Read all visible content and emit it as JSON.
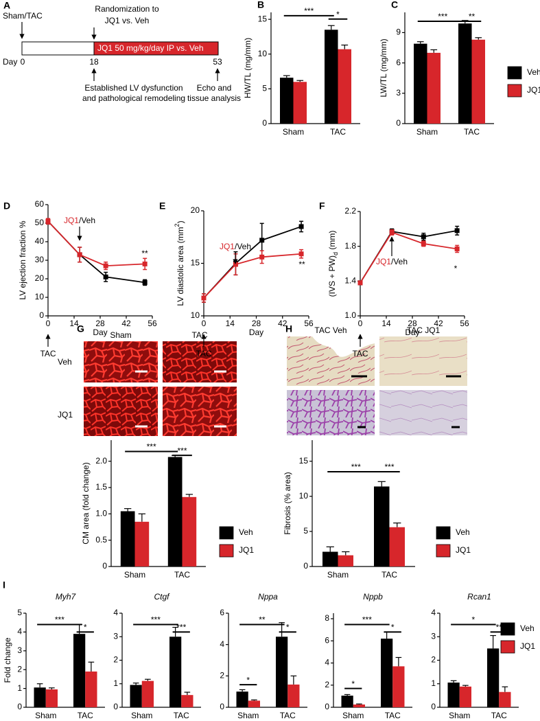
{
  "panel_a": {
    "label": "A",
    "start": "Sham/TAC",
    "randomization": [
      "Randomization to",
      "JQ1 vs. Veh"
    ],
    "day": "Day",
    "days": [
      "0",
      "18",
      "53"
    ],
    "treatment": "JQ1 50 mg/kg/day IP vs. Veh",
    "established": [
      "Established LV dysfunction",
      "and pathological remodeling"
    ],
    "endpoint": [
      "Echo and",
      "tissue analysis"
    ]
  },
  "panel_g": {
    "label": "G",
    "columns": [
      "Sham",
      "TAC"
    ],
    "rows": [
      "Veh",
      "JQ1"
    ]
  },
  "panel_h": {
    "label": "H",
    "columns": [
      "TAC Veh",
      "TAC JQ1"
    ]
  },
  "chart_data": [
    {
      "type": "bar",
      "panel": "B",
      "ylabel": "HW/TL (mg/mm)",
      "categories": [
        "Sham",
        "TAC"
      ],
      "series": [
        {
          "name": "Veh",
          "color": "#000000",
          "values": [
            6.6,
            13.5
          ],
          "errors": [
            0.3,
            0.6
          ]
        },
        {
          "name": "JQ1",
          "color": "#d7262b",
          "values": [
            6.0,
            10.7
          ],
          "errors": [
            0.2,
            0.6
          ]
        }
      ],
      "ylim": [
        0,
        16
      ],
      "yticks": [
        0,
        5,
        10,
        15
      ],
      "annotations": [
        "***",
        "*"
      ],
      "legend": false
    },
    {
      "type": "bar",
      "panel": "C",
      "ylabel": "LW/TL (mg/mm)",
      "categories": [
        "Sham",
        "TAC"
      ],
      "series": [
        {
          "name": "Veh",
          "color": "#000000",
          "values": [
            7.9,
            9.9
          ],
          "errors": [
            0.2,
            0.3
          ]
        },
        {
          "name": "JQ1",
          "color": "#d7262b",
          "values": [
            7.0,
            8.3
          ],
          "errors": [
            0.3,
            0.2
          ]
        }
      ],
      "ylim": [
        0,
        11
      ],
      "yticks": [
        0,
        3,
        6,
        9
      ],
      "annotations": [
        "***",
        "**"
      ],
      "legend": "right"
    },
    {
      "type": "line",
      "panel": "D",
      "ylabel": "LV ejection fraction %",
      "xlabel": "Day",
      "x": [
        0,
        17,
        31,
        52
      ],
      "series": [
        {
          "name": "Veh",
          "color": "#000000",
          "values": [
            51,
            33,
            21,
            18
          ],
          "errors": [
            1.5,
            4,
            2.5,
            1.5
          ]
        },
        {
          "name": "JQ1",
          "color": "#d7262b",
          "values": [
            51,
            33,
            27,
            28
          ],
          "errors": [
            1.5,
            4,
            2,
            3
          ]
        }
      ],
      "xlim": [
        0,
        56
      ],
      "xticks": [
        0,
        14,
        28,
        42,
        56
      ],
      "ylim": [
        0,
        60
      ],
      "yticks": [
        0,
        10,
        20,
        30,
        40,
        50,
        60
      ],
      "drug_label": [
        "JQ1",
        "/Veh"
      ],
      "start_label": "TAC",
      "annotations": [
        "**"
      ],
      "legend": false
    },
    {
      "type": "line",
      "panel": "E",
      "ylabel": [
        "LV diastolic area (mm",
        "2",
        ")"
      ],
      "ylabel_shift": "super",
      "xlabel": "Day",
      "x": [
        0,
        17,
        31,
        52
      ],
      "series": [
        {
          "name": "Veh",
          "color": "#000000",
          "values": [
            11.7,
            15.0,
            17.2,
            18.5
          ],
          "errors": [
            0.4,
            1.1,
            1.6,
            0.5
          ]
        },
        {
          "name": "JQ1",
          "color": "#d7262b",
          "values": [
            11.7,
            14.9,
            15.6,
            15.9
          ],
          "errors": [
            0.4,
            1.0,
            0.6,
            0.4
          ]
        }
      ],
      "xlim": [
        0,
        56
      ],
      "xticks": [
        0,
        14,
        28,
        42,
        56
      ],
      "ylim": [
        10,
        20
      ],
      "yticks": [
        10,
        15,
        20
      ],
      "drug_label": [
        "JQ1",
        "/Veh"
      ],
      "start_label": "TAC",
      "annotations": [
        "**"
      ],
      "legend": false
    },
    {
      "type": "line",
      "panel": "F",
      "ylabel": [
        "(IVS + PW)",
        "d",
        "   (mm)"
      ],
      "ylabel_shift": "sub",
      "xlabel": "Day",
      "x": [
        0,
        17,
        34,
        52
      ],
      "series": [
        {
          "name": "Veh",
          "color": "#000000",
          "values": [
            1.38,
            1.97,
            1.91,
            1.98
          ],
          "errors": [
            0.02,
            0.03,
            0.04,
            0.05
          ]
        },
        {
          "name": "JQ1",
          "color": "#d7262b",
          "values": [
            1.38,
            1.96,
            1.83,
            1.77
          ],
          "errors": [
            0.02,
            0.03,
            0.03,
            0.04
          ]
        }
      ],
      "xlim": [
        0,
        56
      ],
      "xticks": [
        0,
        14,
        28,
        42,
        56
      ],
      "ylim": [
        1,
        2.2
      ],
      "yticks": [
        {
          "value": 1,
          "label": "1.0"
        },
        1.4,
        1.8,
        2.2
      ],
      "drug_label": [
        "JQ1",
        "/Veh"
      ],
      "start_label": "TAC",
      "annotations": [
        "*"
      ],
      "legend": "right"
    },
    {
      "type": "bar",
      "ylabel": "CM area (fold change)",
      "categories": [
        "Sham",
        "TAC"
      ],
      "series": [
        {
          "name": "Veh",
          "color": "#000000",
          "values": [
            1.05,
            2.08
          ],
          "errors": [
            0.05,
            0.03
          ]
        },
        {
          "name": "JQ1",
          "color": "#d7262b",
          "values": [
            0.85,
            1.32
          ],
          "errors": [
            0.15,
            0.05
          ]
        }
      ],
      "ylim": [
        0,
        2.4
      ],
      "yticks": [
        0,
        0.5,
        {
          "value": 1,
          "label": "1.0"
        },
        1.5,
        {
          "value": 2,
          "label": "2.0"
        }
      ],
      "annotations": [
        "***",
        "***"
      ],
      "legend": "right"
    },
    {
      "type": "bar",
      "ylabel": "Fibrosis (% area)",
      "categories": [
        "Sham",
        "TAC"
      ],
      "series": [
        {
          "name": "Veh",
          "color": "#000000",
          "values": [
            2.1,
            11.4
          ],
          "errors": [
            0.7,
            0.7
          ]
        },
        {
          "name": "JQ1",
          "color": "#d7262b",
          "values": [
            1.6,
            5.6
          ],
          "errors": [
            0.5,
            0.6
          ]
        }
      ],
      "ylim": [
        0,
        18
      ],
      "yticks": [
        0,
        5,
        10,
        15
      ],
      "annotations": [
        "***",
        "***"
      ],
      "legend": "right"
    },
    {
      "type": "bar",
      "panel": "I",
      "title": "Myh7",
      "ylabel": "Fold change",
      "categories": [
        "Sham",
        "TAC"
      ],
      "series": [
        {
          "name": "Veh",
          "color": "#000000",
          "values": [
            1.05,
            3.9
          ],
          "errors": [
            0.2,
            0.5
          ]
        },
        {
          "name": "JQ1",
          "color": "#d7262b",
          "values": [
            0.95,
            1.9
          ],
          "errors": [
            0.08,
            0.5
          ]
        }
      ],
      "ylim": [
        0,
        5
      ],
      "yticks": [
        0,
        1,
        2,
        3,
        4,
        5
      ],
      "annotations": [
        "***",
        "*"
      ],
      "legend": false
    },
    {
      "type": "bar",
      "title": "Ctgf",
      "categories": [
        "Sham",
        "TAC"
      ],
      "series": [
        {
          "name": "Veh",
          "color": "#000000",
          "values": [
            0.95,
            3.0
          ],
          "errors": [
            0.08,
            0.4
          ]
        },
        {
          "name": "JQ1",
          "color": "#d7262b",
          "values": [
            1.12,
            0.52
          ],
          "errors": [
            0.07,
            0.12
          ]
        }
      ],
      "ylim": [
        0,
        4
      ],
      "yticks": [
        0,
        1,
        2,
        3,
        4
      ],
      "annotations": [
        "***",
        "***"
      ],
      "legend": false
    },
    {
      "type": "bar",
      "title": "Nppa",
      "categories": [
        "Sham",
        "TAC"
      ],
      "series": [
        {
          "name": "Veh",
          "color": "#000000",
          "values": [
            1.0,
            4.5
          ],
          "errors": [
            0.12,
            0.9
          ]
        },
        {
          "name": "JQ1",
          "color": "#d7262b",
          "values": [
            0.42,
            1.45
          ],
          "errors": [
            0.05,
            0.55
          ]
        }
      ],
      "ylim": [
        0,
        6
      ],
      "yticks": [
        0,
        2,
        4,
        6
      ],
      "annotations": [
        "*",
        "**",
        "*"
      ],
      "legend": false
    },
    {
      "type": "bar",
      "title": "Nppb",
      "categories": [
        "Sham",
        "TAC"
      ],
      "series": [
        {
          "name": "Veh",
          "color": "#000000",
          "values": [
            1.05,
            6.2
          ],
          "errors": [
            0.1,
            0.6
          ]
        },
        {
          "name": "JQ1",
          "color": "#d7262b",
          "values": [
            0.25,
            3.7
          ],
          "errors": [
            0.05,
            0.8
          ]
        }
      ],
      "ylim": [
        0,
        8.5
      ],
      "yticks": [
        0,
        2,
        4,
        6,
        8
      ],
      "annotations": [
        "*",
        "***",
        "*"
      ],
      "legend": false
    },
    {
      "type": "bar",
      "title": "Rcan1",
      "categories": [
        "Sham",
        "TAC"
      ],
      "series": [
        {
          "name": "Veh",
          "color": "#000000",
          "values": [
            1.05,
            2.5
          ],
          "errors": [
            0.08,
            0.55
          ]
        },
        {
          "name": "JQ1",
          "color": "#d7262b",
          "values": [
            0.88,
            0.65
          ],
          "errors": [
            0.05,
            0.22
          ]
        }
      ],
      "ylim": [
        0,
        4
      ],
      "yticks": [
        0,
        1,
        2,
        3,
        4
      ],
      "annotations": [
        "*",
        "**"
      ],
      "legend": "right"
    }
  ]
}
